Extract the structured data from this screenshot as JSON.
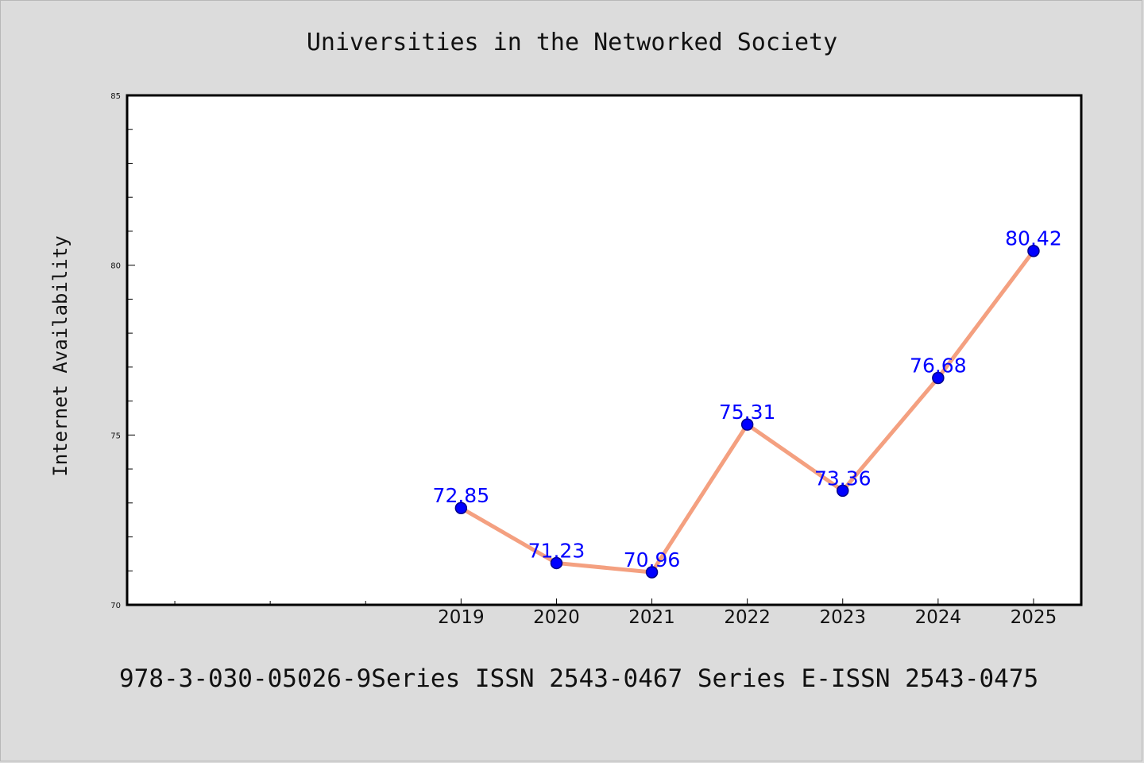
{
  "chart_data": {
    "type": "line",
    "title": "Universities in the Networked Society",
    "xlabel": "",
    "ylabel": "Internet Availability",
    "footer": "978-3-030-05026-9Series ISSN 2543-0467 Series E-ISSN 2543-0475",
    "x": [
      2019,
      2020,
      2021,
      2022,
      2023,
      2024,
      2025
    ],
    "x_tick_labels": [
      "2019",
      "2020",
      "2021",
      "2022",
      "2023",
      "2024",
      "2025"
    ],
    "xlim": [
      2015.5,
      2025.5
    ],
    "ylim": [
      70,
      85
    ],
    "y_ticks": [
      70,
      75,
      80,
      85
    ],
    "y_minor_step": 1,
    "series": [
      {
        "values": [
          72.85,
          71.23,
          70.96,
          75.31,
          73.36,
          76.68,
          80.42
        ],
        "labels": [
          "72.85",
          "71.23",
          "70.96",
          "75.31",
          "73.36",
          "76.68",
          "80.42"
        ]
      }
    ],
    "grid": false,
    "colors": {
      "line": "#f4a080",
      "marker": "#0000ff",
      "marker_edge": "#00008b",
      "data_label": "#0000ff",
      "background": "#dcdcdc",
      "plot_background": "#ffffff"
    }
  }
}
